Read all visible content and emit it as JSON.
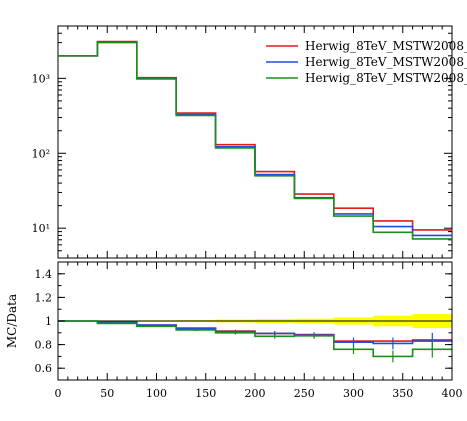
{
  "chart_data": [
    {
      "type": "line",
      "step": true,
      "y_scale": "log",
      "ylim": [
        4,
        5000
      ],
      "xlim": [
        0,
        400
      ],
      "x_edges": [
        0,
        40,
        80,
        120,
        160,
        200,
        240,
        280,
        320,
        360,
        400
      ],
      "y_tick_labels": [
        {
          "value": 10,
          "label": "10¹"
        },
        {
          "value": 100,
          "label": "10²"
        },
        {
          "value": 1000,
          "label": "10³"
        }
      ],
      "legend_position": "top-right",
      "series": [
        {
          "name": "Herwig_8TeV_MSTW2008_",
          "color": "#e41a1c",
          "values": [
            2000,
            3100,
            1020,
            345,
            130,
            57,
            28.5,
            18.5,
            12.5,
            9.5
          ]
        },
        {
          "name": "Herwig_8TeV_MSTW2008_",
          "color": "#1f4fd8",
          "values": [
            2000,
            3050,
            990,
            330,
            122,
            52,
            25.5,
            15.5,
            10.5,
            8.0
          ]
        },
        {
          "name": "Herwig_8TeV_MSTW2008_",
          "color": "#1a8f1a",
          "values": [
            2000,
            3000,
            980,
            320,
            118,
            50,
            25,
            14.5,
            8.8,
            7.2
          ]
        }
      ]
    },
    {
      "type": "line",
      "step": true,
      "ylabel": "MC/Data",
      "ylim": [
        0.5,
        1.5
      ],
      "xlim": [
        0,
        400
      ],
      "x_edges": [
        0,
        40,
        80,
        120,
        160,
        200,
        240,
        280,
        320,
        360,
        400
      ],
      "x_ticks": [
        0,
        50,
        100,
        150,
        200,
        250,
        300,
        350,
        400
      ],
      "y_ticks": [
        0.6,
        0.8,
        1.0,
        1.2,
        1.4
      ],
      "y_tick_labels": [
        "0.6",
        "0.8",
        "1",
        "1.2",
        "1.4"
      ],
      "band_color": "#ffff00",
      "band_half_width": [
        0.004,
        0.005,
        0.006,
        0.008,
        0.012,
        0.016,
        0.02,
        0.03,
        0.045,
        0.06
      ],
      "series": [
        {
          "color": "#e41a1c",
          "values": [
            1.0,
            0.99,
            0.965,
            0.94,
            0.915,
            0.895,
            0.885,
            0.83,
            0.83,
            0.84
          ]
        },
        {
          "color": "#1f4fd8",
          "values": [
            1.0,
            0.985,
            0.965,
            0.935,
            0.91,
            0.895,
            0.88,
            0.82,
            0.81,
            0.83
          ],
          "errors": [
            0.003,
            0.004,
            0.006,
            0.01,
            0.015,
            0.02,
            0.025,
            0.04,
            0.05,
            0.07
          ]
        },
        {
          "color": "#1a8f1a",
          "values": [
            1.0,
            0.98,
            0.955,
            0.925,
            0.9,
            0.87,
            0.875,
            0.76,
            0.7,
            0.76
          ],
          "errors": [
            0.003,
            0.004,
            0.006,
            0.01,
            0.015,
            0.02,
            0.025,
            0.04,
            0.05,
            0.07
          ]
        }
      ]
    }
  ]
}
